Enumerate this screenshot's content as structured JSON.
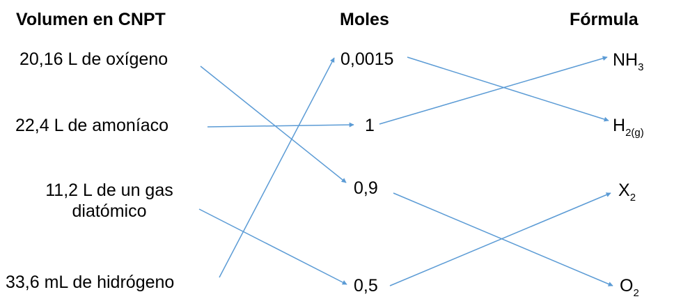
{
  "headers": {
    "volume": "Volumen en CNPT",
    "moles": "Moles",
    "formula": "Fórmula"
  },
  "volumes": [
    {
      "text": "20,16 L de oxígeno"
    },
    {
      "text": "22,4 L de amoníaco"
    },
    {
      "line1": "11,2 L de un gas",
      "line2": "diatómico"
    },
    {
      "text": "33,6 mL de hidrógeno"
    }
  ],
  "moles": [
    "0,0015",
    "1",
    "0,9",
    "0,5"
  ],
  "formulas": [
    {
      "base": "NH",
      "sub": "3"
    },
    {
      "base": "H",
      "sub": "2(g)"
    },
    {
      "base": "X",
      "sub": "2"
    },
    {
      "base": "O",
      "sub": "2"
    }
  ],
  "colors": {
    "arrow": "#5b9bd5",
    "text": "#000000"
  }
}
